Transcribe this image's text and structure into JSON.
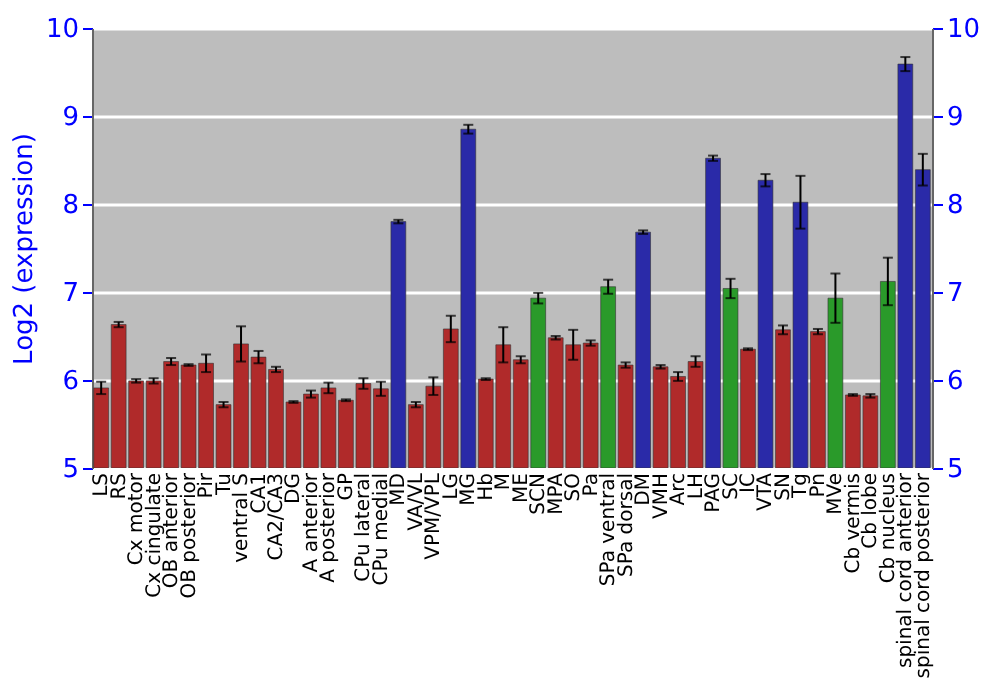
{
  "chart_data": {
    "type": "bar",
    "ylabel": "Log2 (expression)",
    "categories": [
      "LS",
      "RS",
      "Cx motor",
      "Cx cingulate",
      "OB anterior",
      "OB posterior",
      "Pir",
      "Tu",
      "ventral S",
      "CA1",
      "CA2/CA3",
      "DG",
      "A anterior",
      "A posterior",
      "GP",
      "CPu lateral",
      "CPu medial",
      "MD",
      "VA/VL",
      "VPM/VPL",
      "LG",
      "MG",
      "Hb",
      "M",
      "ME",
      "SCN",
      "MPA",
      "SO",
      "Pa",
      "SPa ventral",
      "SPa dorsal",
      "DM",
      "VMH",
      "Arc",
      "LH",
      "PAG",
      "SC",
      "IC",
      "VTA",
      "SN",
      "Tg",
      "Pn",
      "MVe",
      "Cb vermis",
      "Cb lobe",
      "Cb nucleus",
      "spinal cord anterior",
      "spinal cord posterior"
    ],
    "values": [
      5.91,
      6.63,
      5.99,
      5.99,
      6.21,
      6.17,
      6.19,
      5.72,
      6.41,
      6.26,
      6.12,
      5.75,
      5.84,
      5.91,
      5.77,
      5.96,
      5.9,
      7.8,
      5.72,
      5.93,
      6.58,
      8.85,
      6.01,
      6.4,
      6.23,
      6.93,
      6.48,
      6.4,
      6.42,
      7.06,
      6.17,
      7.68,
      6.15,
      6.04,
      6.21,
      8.52,
      7.04,
      6.35,
      8.27,
      6.57,
      8.02,
      6.55,
      6.93,
      5.83,
      5.82,
      7.12,
      9.59,
      8.39
    ],
    "errors": [
      0.07,
      0.03,
      0.02,
      0.03,
      0.04,
      0.01,
      0.1,
      0.03,
      0.2,
      0.07,
      0.03,
      0.01,
      0.04,
      0.06,
      0.01,
      0.06,
      0.08,
      0.02,
      0.03,
      0.1,
      0.15,
      0.05,
      0.01,
      0.2,
      0.04,
      0.06,
      0.02,
      0.17,
      0.03,
      0.08,
      0.03,
      0.02,
      0.02,
      0.05,
      0.06,
      0.03,
      0.11,
      0.01,
      0.07,
      0.05,
      0.3,
      0.03,
      0.28,
      0.01,
      0.02,
      0.27,
      0.08,
      0.18
    ],
    "colors": [
      "#b02a2a",
      "#b02a2a",
      "#b02a2a",
      "#b02a2a",
      "#b02a2a",
      "#b02a2a",
      "#b02a2a",
      "#b02a2a",
      "#b02a2a",
      "#b02a2a",
      "#b02a2a",
      "#b02a2a",
      "#b02a2a",
      "#b02a2a",
      "#b02a2a",
      "#b02a2a",
      "#b02a2a",
      "#2a2aa8",
      "#b02a2a",
      "#b02a2a",
      "#b02a2a",
      "#2a2aa8",
      "#b02a2a",
      "#b02a2a",
      "#b02a2a",
      "#2a9a2a",
      "#b02a2a",
      "#b02a2a",
      "#b02a2a",
      "#2a9a2a",
      "#b02a2a",
      "#2a2aa8",
      "#b02a2a",
      "#b02a2a",
      "#b02a2a",
      "#2a2aa8",
      "#2a9a2a",
      "#b02a2a",
      "#2a2aa8",
      "#b02a2a",
      "#2a2aa8",
      "#b02a2a",
      "#2a9a2a",
      "#b02a2a",
      "#b02a2a",
      "#2a9a2a",
      "#2a2aa8",
      "#2a2aa8"
    ],
    "ylim": [
      5,
      10
    ],
    "yticks": [
      5,
      6,
      7,
      8,
      9,
      10
    ],
    "y2lim": [
      5,
      10
    ],
    "y2ticks": [
      5,
      6,
      7,
      8,
      9,
      10
    ],
    "grid": "y"
  }
}
